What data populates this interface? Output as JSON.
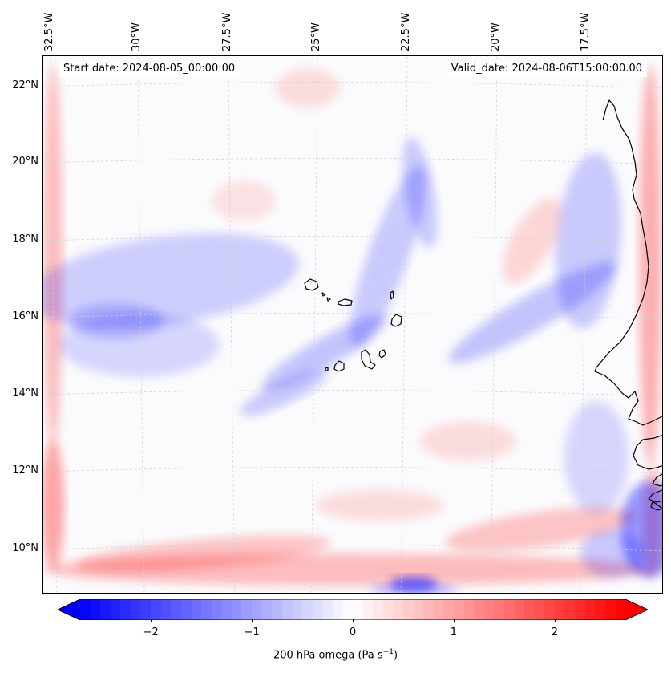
{
  "start_date": "Start date: 2024-08-05_00:00:00",
  "valid_date": "Valid_date: 2024-08-06T15:00:00.00",
  "lon_labels": [
    "32.5°W",
    "30°W",
    "27.5°W",
    "25°W",
    "22.5°W",
    "20°W",
    "17.5°W"
  ],
  "lat_labels": [
    "22°N",
    "20°N",
    "18°N",
    "16°N",
    "14°N",
    "12°N",
    "10°N"
  ],
  "colorbar": {
    "ticks": [
      "−2",
      "−1",
      "0",
      "1",
      "2"
    ],
    "tick_values": [
      -2,
      -1,
      0,
      1,
      2
    ],
    "range": [
      -2.7,
      2.7
    ],
    "label_prefix": "200 hPa omega (Pa s",
    "label_exp": "−1",
    "label_suffix": ")",
    "low_color": "#0000ff",
    "mid_color": "#ffffff",
    "high_color": "#ff0000"
  },
  "colors": {
    "positive": "#ff0000",
    "negative": "#0000ff",
    "coastline": "#000000",
    "gridline": "#cfcfcf"
  }
}
